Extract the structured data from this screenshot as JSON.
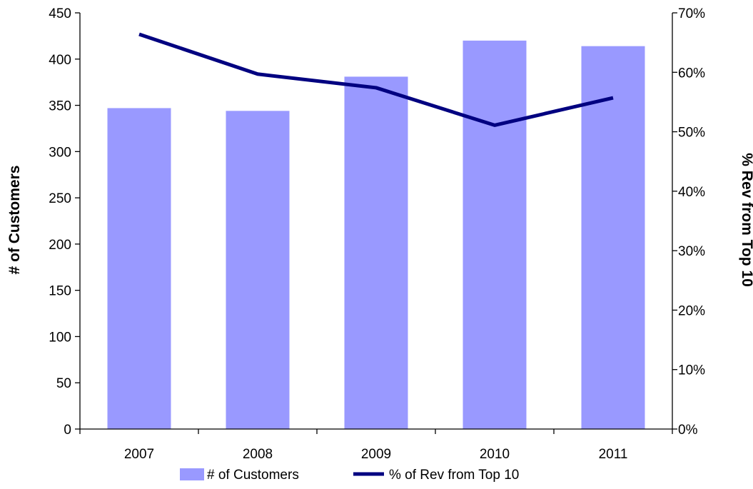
{
  "chart_data": {
    "type": "bar",
    "categories": [
      "2007",
      "2008",
      "2009",
      "2010",
      "2011"
    ],
    "series": [
      {
        "name": "# of Customers",
        "type": "bar",
        "axis": "left",
        "color": "#9999ff",
        "values": [
          347,
          344,
          381,
          420,
          414
        ]
      },
      {
        "name": "% of Rev from Top 10",
        "type": "line",
        "axis": "right",
        "color": "#000080",
        "values": [
          0.664,
          0.597,
          0.574,
          0.511,
          0.557
        ]
      }
    ],
    "y_left": {
      "label": "# of Customers",
      "lim": [
        0,
        450
      ],
      "ticks": [
        "0",
        "50",
        "100",
        "150",
        "200",
        "250",
        "300",
        "350",
        "400",
        "450"
      ]
    },
    "y_right": {
      "label": "% Rev from Top 10",
      "lim": [
        0,
        0.7
      ],
      "ticks": [
        "0%",
        "10%",
        "20%",
        "30%",
        "40%",
        "50%",
        "60%",
        "70%"
      ]
    },
    "legend_position": "bottom",
    "grid": false
  }
}
